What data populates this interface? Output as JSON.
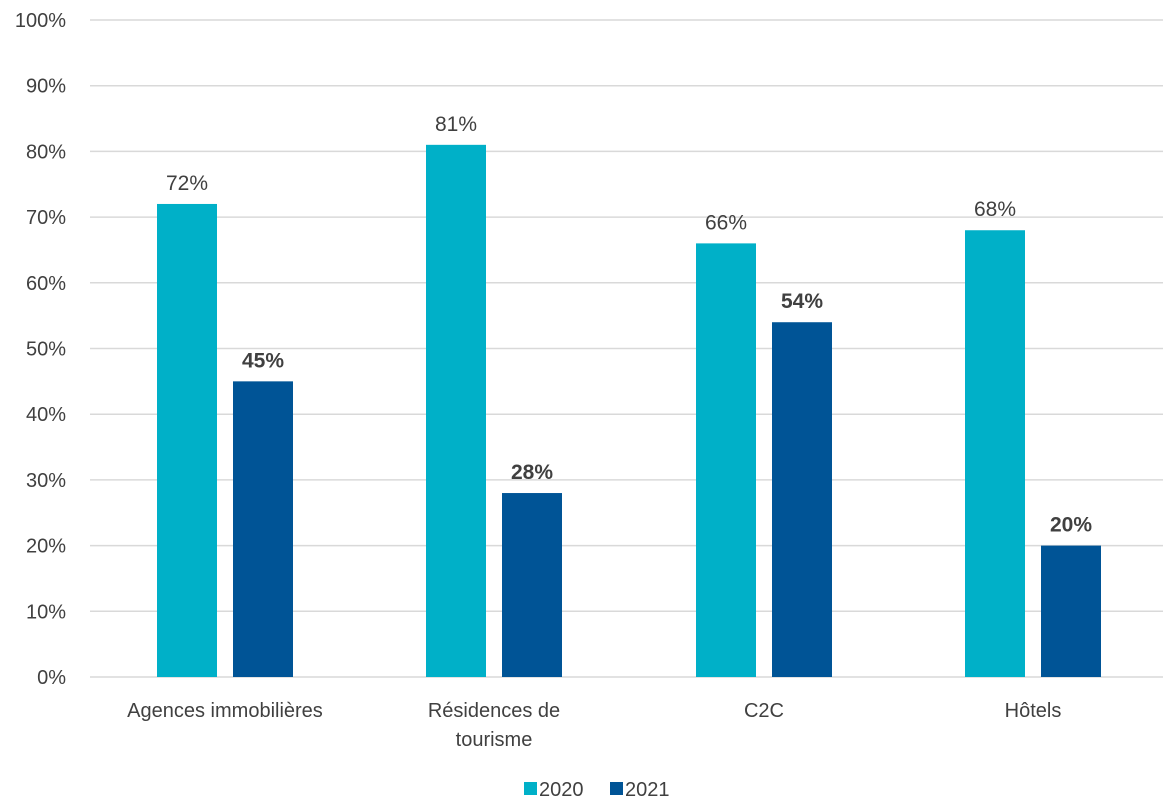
{
  "chart_data": {
    "type": "bar",
    "categories": [
      [
        "Agences immobilières"
      ],
      [
        "Résidences de",
        "tourisme"
      ],
      [
        "C2C"
      ],
      [
        "Hôtels"
      ]
    ],
    "series": [
      {
        "name": "2020",
        "values": [
          72,
          81,
          66,
          68
        ],
        "labels": [
          "72%",
          "81%",
          "66%",
          "68%"
        ],
        "color": "#00B0C8",
        "label_bold": false
      },
      {
        "name": "2021",
        "values": [
          45,
          28,
          54,
          20
        ],
        "labels": [
          "45%",
          "28%",
          "54%",
          "20%"
        ],
        "color": "#005496",
        "label_bold": true
      }
    ],
    "yticks": [
      "0%",
      "10%",
      "20%",
      "30%",
      "40%",
      "50%",
      "60%",
      "70%",
      "80%",
      "90%",
      "100%"
    ],
    "ylim": [
      0,
      100
    ],
    "grid": true,
    "legend_position": "bottom",
    "gridline_color": "#D9D9D9"
  }
}
